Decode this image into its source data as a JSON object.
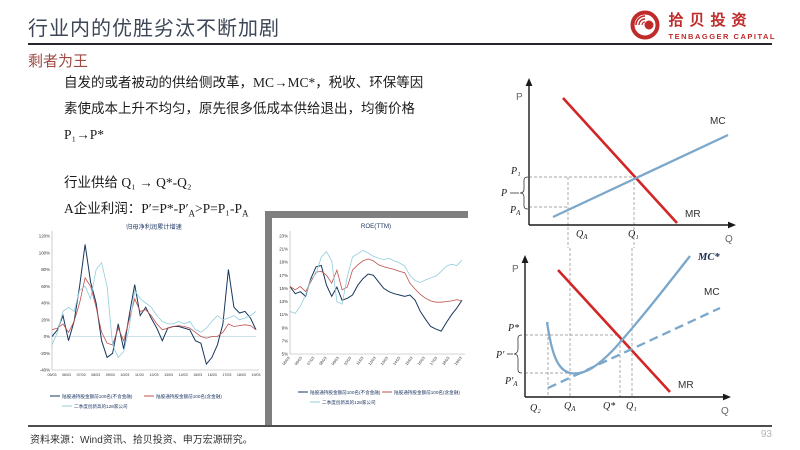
{
  "header": {
    "title": "行业内的优胜劣汰不断加剧",
    "logo_cn": "拾贝投资",
    "logo_en": "TENBAGGER CAPITAL"
  },
  "subtitle": "剩者为王",
  "body": {
    "line1": "自发的或者被动的供给侧改革，MC→MC*，税收、环保等因",
    "line2": "素使成本上升不均匀，原先很多低成本供给退出，均衡价格",
    "line3": "P₁→P*",
    "line4": "行业供给 Q₁ → Q*-Q₂",
    "line5a": "A企业利润：P′=P*-P′",
    "line5_sub1": "A",
    "line5b": ">P=P₁-P",
    "line5_sub2": "A"
  },
  "chart_data": [
    {
      "type": "line",
      "title": "归母净利润累计增速",
      "categories": [
        "05/03",
        "06/03",
        "07/03",
        "08/03",
        "09/03",
        "10/03",
        "11/03",
        "12/03",
        "13/03",
        "14/03",
        "15/03",
        "16/03",
        "17/03",
        "18/03",
        "19/03"
      ],
      "yticks": [
        "120%",
        "100%",
        "80%",
        "60%",
        "40%",
        "20%",
        "0%",
        "-20%",
        "-40%"
      ],
      "ylim": [
        -40,
        120
      ],
      "grid": false,
      "zero_line": true,
      "legend_position": "bottom",
      "series": [
        {
          "name": "陆股通持股金额前100名(不含金融)",
          "color": "#17375e",
          "values": [
            0,
            8,
            25,
            -5,
            18,
            60,
            110,
            65,
            40,
            -5,
            -25,
            -20,
            15,
            -15,
            25,
            62,
            25,
            35,
            22,
            10,
            -5,
            10,
            12,
            12,
            10,
            8,
            -5,
            -8,
            -33,
            -25,
            -10,
            15,
            80,
            35,
            28,
            30,
            22,
            8
          ]
        },
        {
          "name": "陆股通持股金额前100名(含金融)",
          "color": "#c0504d",
          "values": [
            8,
            10,
            15,
            5,
            18,
            40,
            70,
            60,
            35,
            5,
            -8,
            -10,
            10,
            -5,
            20,
            45,
            30,
            32,
            25,
            15,
            8,
            10,
            12,
            13,
            12,
            10,
            5,
            0,
            -2,
            0,
            0,
            5,
            15,
            12,
            13,
            14,
            13,
            8
          ]
        },
        {
          "name": "二季度创新高的128家公司",
          "color": "#92cddc",
          "values": [
            -10,
            5,
            30,
            35,
            30,
            55,
            60,
            45,
            80,
            88,
            60,
            -10,
            -25,
            -18,
            10,
            55,
            45,
            40,
            35,
            25,
            18,
            15,
            15,
            18,
            15,
            18,
            8,
            5,
            10,
            18,
            25,
            20,
            22,
            25,
            20,
            22,
            25,
            30
          ]
        }
      ]
    },
    {
      "type": "line",
      "title": "ROE(TTM)",
      "categories": [
        "05/03",
        "06/03",
        "07/03",
        "08/03",
        "09/03",
        "10/03",
        "11/03",
        "12/03",
        "13/03",
        "14/03",
        "15/03",
        "16/03",
        "17/03",
        "18/03",
        "19/03"
      ],
      "yticks": [
        "23%",
        "21%",
        "19%",
        "17%",
        "15%",
        "13%",
        "11%",
        "9%",
        "7%",
        "5%"
      ],
      "ylim": [
        5,
        23
      ],
      "grid": false,
      "zero_line": false,
      "legend_position": "bottom",
      "series": [
        {
          "name": "陆股通持股金额前100名(不含金融)",
          "color": "#17375e",
          "values": [
            15.3,
            14.2,
            14.5,
            13.8,
            16.5,
            18.3,
            18.5,
            15.5,
            13.8,
            15.2,
            13.2,
            13.5,
            14.0,
            15.5,
            16.5,
            17.2,
            17.0,
            16.0,
            15.0,
            14.5,
            14.2,
            14.0,
            13.8,
            14.0,
            13.2,
            11.5,
            10.3,
            9.2,
            8.8,
            8.5,
            9.8,
            11.0,
            12.0,
            13.2
          ]
        },
        {
          "name": "陆股通持股金额前100名(含金融)",
          "color": "#c0504d",
          "values": [
            15.3,
            14.8,
            15.3,
            14.5,
            16.0,
            17.5,
            17.6,
            17.0,
            15.8,
            17.8,
            14.8,
            15.2,
            17.8,
            18.6,
            19.2,
            19.5,
            19.2,
            18.6,
            18.3,
            18.1,
            17.9,
            17.6,
            17.4,
            15.8,
            14.9,
            14.1,
            13.5,
            13.1,
            12.9,
            12.9,
            13.0,
            13.1,
            13.3,
            13.1
          ]
        },
        {
          "name": "二季度创新高的128家公司",
          "color": "#92cddc",
          "values": [
            11.5,
            11.2,
            12.3,
            14.0,
            16.3,
            17.3,
            19.8,
            20.6,
            19.2,
            13.0,
            12.6,
            16.8,
            19.8,
            20.3,
            20.8,
            20.4,
            19.9,
            19.6,
            19.4,
            19.6,
            19.2,
            18.9,
            18.4,
            17.0,
            16.2,
            15.9,
            16.3,
            16.6,
            16.9,
            17.6,
            18.4,
            18.7,
            18.5,
            19.3
          ]
        }
      ]
    }
  ],
  "diagram_top": {
    "axis_p": "P",
    "axis_q": "Q",
    "mc": "MC",
    "mr": "MR",
    "p1": "P₁",
    "p": "P",
    "pa_main": "P",
    "pa_sub": "A",
    "qa_main": "Q",
    "qa_sub": "A",
    "q1": "Q₁"
  },
  "diagram_bottom": {
    "axis_p": "P",
    "axis_q": "Q",
    "mc_star": "MC*",
    "mc": "MC",
    "mr": "MR",
    "p_star": "P*",
    "p_prime": "P′",
    "pa_main": "P′",
    "pa_sub": "A",
    "q2": "Q₂",
    "qa_main": "Q",
    "qa_sub": "A",
    "q_star": "Q*",
    "q1": "Q₁"
  },
  "footer": {
    "source": "资料来源：Wind资讯、拾贝投资、申万宏源研究。",
    "page": "93"
  }
}
